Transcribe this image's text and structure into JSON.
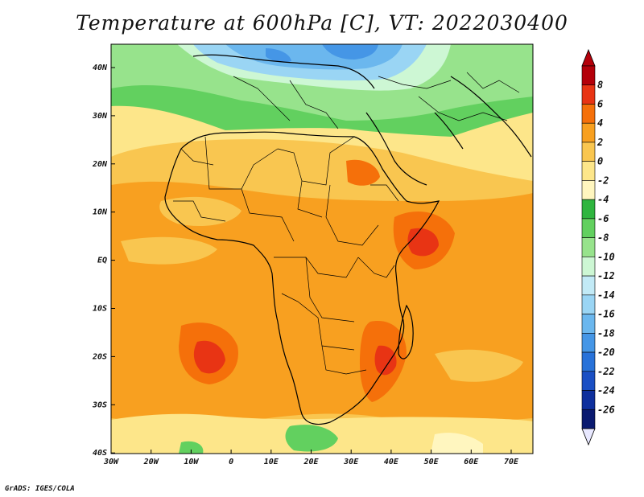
{
  "title": "Temperature at 600hPa [C], VT: 2022030400",
  "credit": "GrADS: IGES/COLA",
  "map": {
    "lon_labels": [
      "30W",
      "20W",
      "10W",
      "0",
      "10E",
      "20E",
      "30E",
      "40E",
      "50E",
      "60E",
      "70E"
    ],
    "lat_labels": [
      "40N",
      "30N",
      "20N",
      "10N",
      "EQ",
      "10S",
      "20S",
      "30S",
      "40S"
    ]
  },
  "colorbar": {
    "labels": [
      "8",
      "6",
      "4",
      "2",
      "0",
      "-2",
      "-4",
      "-6",
      "-8",
      "-10",
      "-12",
      "-14",
      "-16",
      "-18",
      "-20",
      "-22",
      "-24",
      "-26"
    ],
    "colors": [
      "#b4000a",
      "#e83414",
      "#f5700a",
      "#f8a020",
      "#f9c650",
      "#fde68a",
      "#fff6bf",
      "#2fb53f",
      "#62d05f",
      "#97e38c",
      "#cdf7d4",
      "#c2eaf6",
      "#9ad5f4",
      "#6bb7ee",
      "#4596e6",
      "#2872d9",
      "#1a4fc4",
      "#0e2f9d",
      "#0a1a70"
    ],
    "tip_top_color": "#b4000a",
    "tip_bottom_color": "#e8e8ff"
  }
}
